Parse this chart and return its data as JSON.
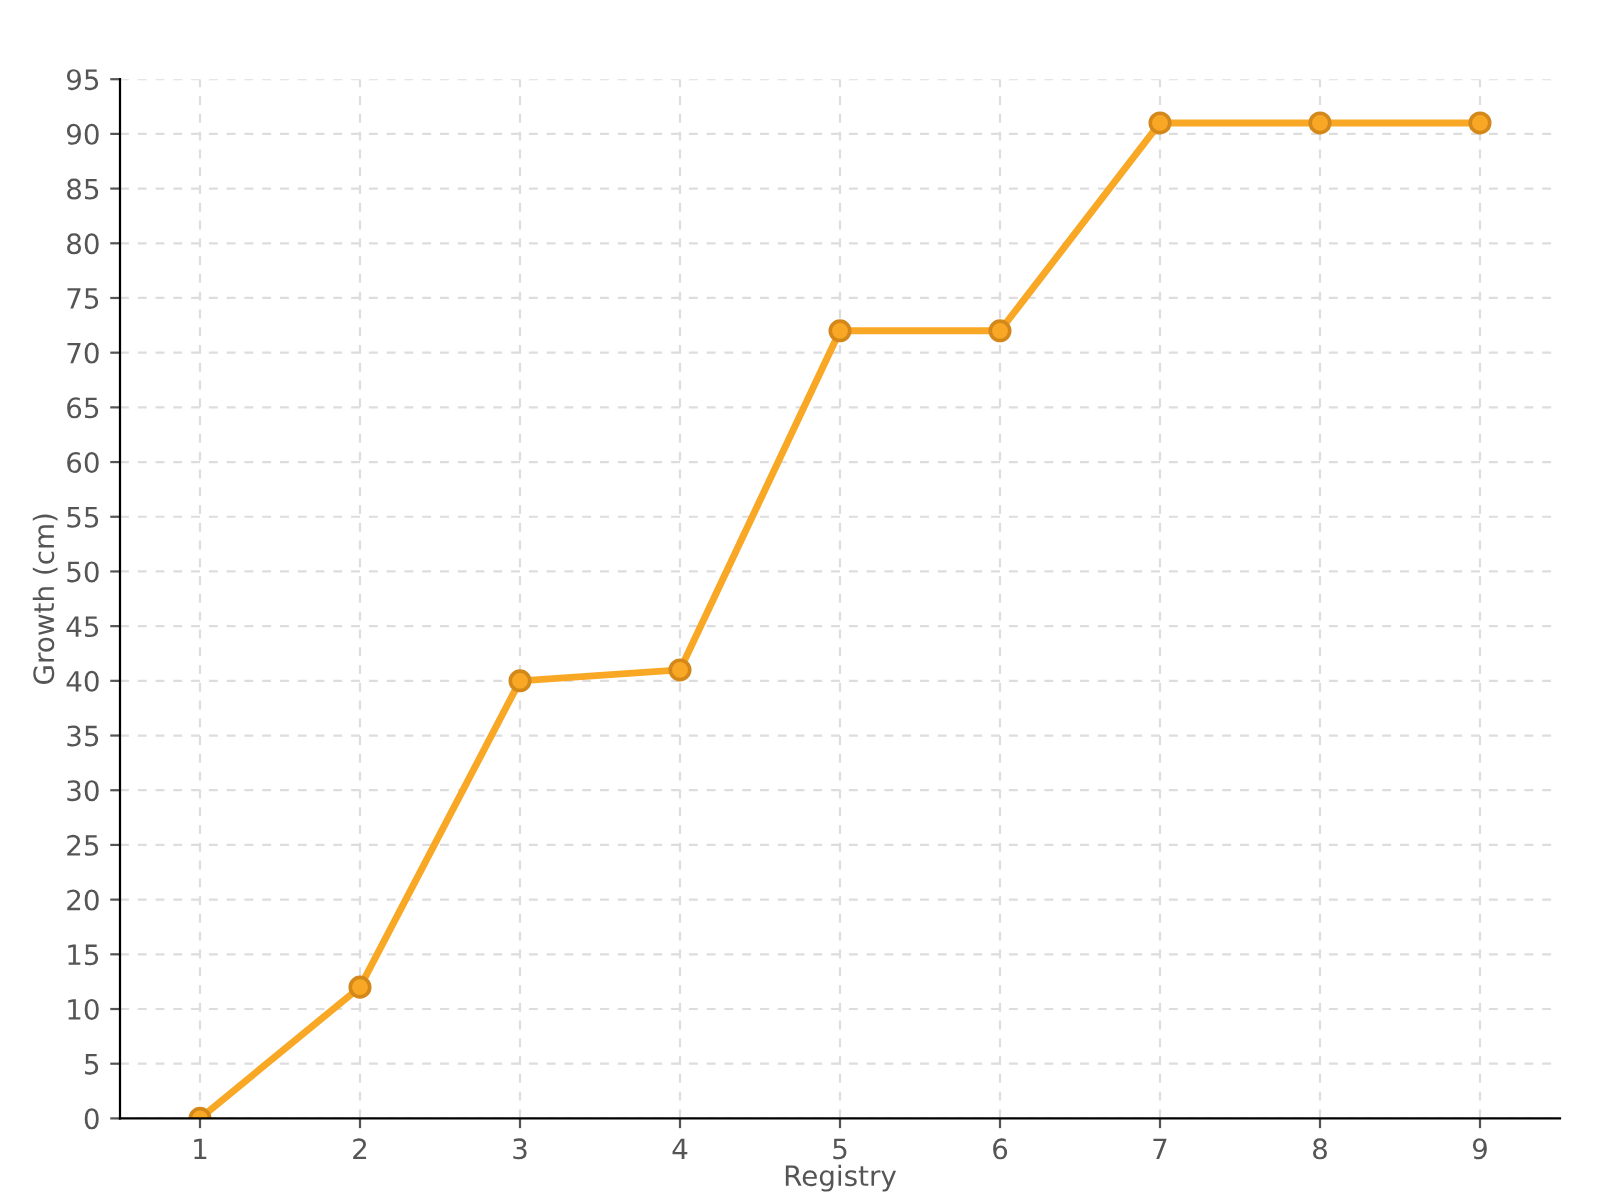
{
  "chart_data": {
    "type": "line",
    "xlabel": "Registry",
    "ylabel": "Growth (cm)",
    "categories": [
      "1",
      "2",
      "3",
      "4",
      "5",
      "6",
      "7",
      "8",
      "9"
    ],
    "series": [
      {
        "color": "#f9a825",
        "values": [
          0,
          12,
          40,
          41,
          72,
          72,
          91,
          91,
          91
        ]
      }
    ],
    "ylim": [
      0,
      95
    ],
    "yticks": [
      0,
      5,
      10,
      15,
      20,
      25,
      30,
      35,
      40,
      45,
      50,
      55,
      60,
      65,
      70,
      75,
      80,
      85,
      90,
      95
    ],
    "grid": true,
    "marker": "circle",
    "line_style": "solid"
  }
}
